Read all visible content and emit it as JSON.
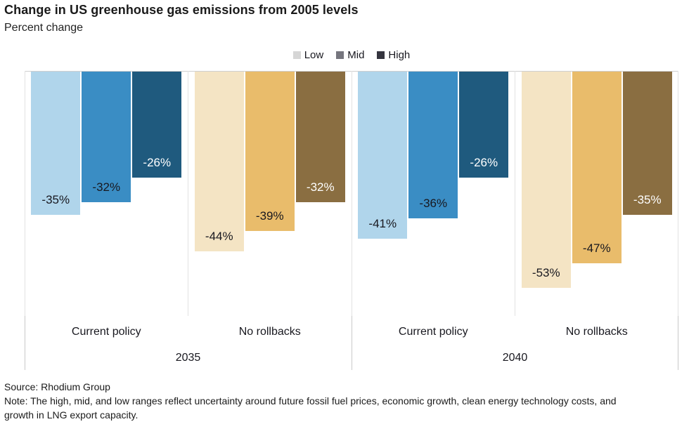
{
  "title": "Change in US greenhouse gas emissions from 2005 levels",
  "subtitle": "Percent change",
  "legend": {
    "items": [
      {
        "label": "Low",
        "color": "#d6d6d6"
      },
      {
        "label": "Mid",
        "color": "#76767e"
      },
      {
        "label": "High",
        "color": "#35353f"
      }
    ]
  },
  "chart_data": {
    "type": "bar",
    "title": "Change in US greenhouse gas emissions from 2005 levels",
    "ylabel": "Percent change",
    "unit": "%",
    "ylim": [
      -60,
      0
    ],
    "grid": false,
    "legend_position": "top-center",
    "series_levels": [
      "Low",
      "Mid",
      "High"
    ],
    "label_colors": [
      "#18181f",
      "#18181f",
      "#ffffff"
    ],
    "palettes": {
      "blue": [
        "#b0d5eb",
        "#3a8dc4",
        "#1f5a7e"
      ],
      "tan": [
        "#f4e4c4",
        "#e9bc6b",
        "#8a6e41"
      ]
    },
    "groups": [
      {
        "year": "2035",
        "scenario": "Current policy",
        "palette": "blue",
        "values": [
          -35,
          -32,
          -26
        ],
        "labels": [
          "-35%",
          "-32%",
          "-26%"
        ]
      },
      {
        "year": "2035",
        "scenario": "No rollbacks",
        "palette": "tan",
        "values": [
          -44,
          -39,
          -32
        ],
        "labels": [
          "-44%",
          "-39%",
          "-32%"
        ]
      },
      {
        "year": "2040",
        "scenario": "Current policy",
        "palette": "blue",
        "values": [
          -41,
          -36,
          -26
        ],
        "labels": [
          "-41%",
          "-36%",
          "-26%"
        ]
      },
      {
        "year": "2040",
        "scenario": "No rollbacks",
        "palette": "tan",
        "values": [
          -53,
          -47,
          -35
        ],
        "labels": [
          "-53%",
          "-47%",
          "-35%"
        ]
      }
    ],
    "year_groups": [
      {
        "label": "2035"
      },
      {
        "label": "2040"
      }
    ]
  },
  "source": "Source: Rhodium Group",
  "note": "Note: The high, mid, and low ranges reflect uncertainty around future fossil fuel prices, economic growth, clean energy technology costs, and growth in LNG export capacity."
}
